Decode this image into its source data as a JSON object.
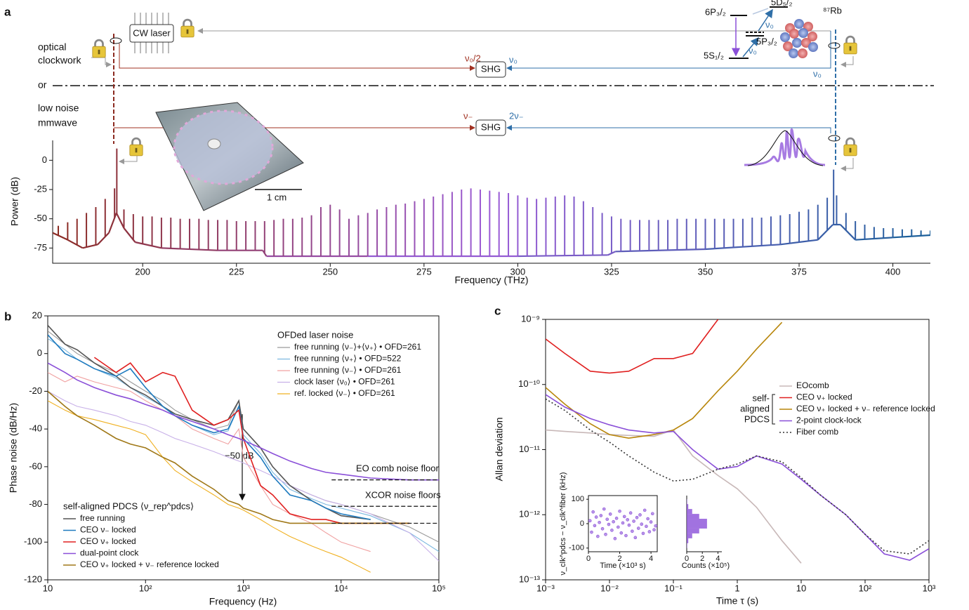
{
  "diagram": {
    "panel_labels": [
      "a",
      "b",
      "c"
    ],
    "cw_laser": "CW laser",
    "optical_clockwork": [
      "optical",
      "clockwork"
    ],
    "or": "or",
    "low_noise_mmwave": [
      "low noise",
      "mmwave"
    ],
    "shg": [
      "SHG",
      "SHG"
    ],
    "upper_left_freq": "ν₀/2",
    "upper_right_freq": "ν₀",
    "right_freq": "ν₀",
    "lower_left_freq": "ν₋",
    "lower_right_freq": "2ν₋",
    "levels": [
      "6P₃/₂",
      "5D₅/₂",
      "5P₃/₂",
      "5S₁/₂"
    ],
    "transitions": [
      "ν₀",
      "ν₀"
    ],
    "atom": "⁸⁷Rb",
    "scale_bar": "1 cm"
  },
  "chart_data": [
    {
      "type": "spectrum",
      "xlabel": "Frequency (THz)",
      "ylabel": "Power (dB)",
      "xlim": [
        176,
        410
      ],
      "ylim": [
        -88,
        17
      ],
      "xticks": [
        200,
        225,
        250,
        275,
        300,
        325,
        350,
        375,
        400
      ],
      "yticks": [
        0,
        -25,
        -50,
        -75
      ],
      "colors": [
        "#8b2a20",
        "#9b5bd6",
        "#1c5f9a"
      ],
      "x": [
        177.5,
        180,
        182.5,
        185,
        187.5,
        190,
        192.5,
        195,
        197.5,
        200,
        202.5,
        205,
        207.5,
        210,
        212.5,
        215,
        217.5,
        220,
        222.5,
        225,
        227.5,
        230,
        232.5,
        235,
        237.5,
        240,
        242.5,
        245,
        247.5,
        250,
        252.5,
        255,
        257.5,
        260,
        262.5,
        265,
        267.5,
        270,
        272.5,
        275,
        277.5,
        280,
        282.5,
        285,
        287.5,
        290,
        292.5,
        295,
        297.5,
        300,
        302.5,
        305,
        307.5,
        310,
        312.5,
        315,
        317.5,
        320,
        322.5,
        325,
        327.5,
        330,
        332.5,
        335,
        337.5,
        340,
        342.5,
        345,
        347.5,
        350,
        352.5,
        355,
        357.5,
        360,
        362.5,
        365,
        367.5,
        370,
        372.5,
        375,
        377.5,
        380,
        382.5,
        385,
        387.5,
        390,
        392.5,
        395,
        397.5,
        400,
        402.5,
        405,
        407.5,
        410
      ],
      "values": [
        -56,
        -53,
        -50,
        -45,
        -40,
        -33,
        -24,
        -42,
        -46,
        -48,
        -48,
        -49,
        -49,
        -50,
        -50,
        -50,
        -51,
        -51,
        -51,
        -52,
        -52,
        -52,
        -52,
        -51,
        -50,
        -50,
        -49,
        -47,
        -40,
        -38,
        -42,
        -50,
        -47,
        -45,
        -42,
        -40,
        -38,
        -37,
        -35,
        -33,
        -31,
        -29,
        -27,
        -25,
        -24,
        -25,
        -26,
        -27,
        -28,
        -30,
        -32,
        -33,
        -32,
        -31,
        -30,
        -31,
        -35,
        -40,
        -45,
        -48,
        -50,
        -51,
        -51,
        -51,
        -51,
        -51,
        -50,
        -50,
        -50,
        -50,
        -50,
        -50,
        -50,
        -50,
        -49,
        -49,
        -48,
        -47,
        -46,
        -44,
        -42,
        -38,
        -32,
        -30,
        -45,
        -52,
        -55,
        -57,
        -58,
        -58,
        -59,
        -59,
        -60,
        -60
      ],
      "floor": {
        "x": [
          176,
          180,
          184,
          188,
          191,
          193,
          195,
          198,
          205,
          220,
          232,
          233,
          260,
          300,
          324,
          326,
          350,
          370,
          380,
          384,
          386,
          390,
          400,
          410
        ],
        "values": [
          -62,
          -68,
          -75,
          -72,
          -62,
          -45,
          -58,
          -70,
          -75,
          -77,
          -77,
          -82,
          -82,
          -82,
          -81,
          -78,
          -76,
          -72,
          -68,
          -55,
          -55,
          -68,
          -66,
          -64
        ]
      },
      "spikes": {
        "x": [
          193.1,
          384.2
        ],
        "values": [
          10,
          -8
        ]
      }
    },
    {
      "type": "line",
      "xlabel": "Frequency (Hz)",
      "ylabel": "Phase noise (dB/Hz)",
      "xlog": true,
      "xlim": [
        10,
        100000
      ],
      "ylim": [
        -120,
        20
      ],
      "xticks": [
        10,
        {
          "value": 100,
          "label": "10²"
        },
        {
          "value": 1000,
          "label": "10³"
        },
        {
          "value": 10000,
          "label": "10⁴"
        },
        {
          "value": 100000,
          "label": "10⁵"
        }
      ],
      "yticks": [
        -120,
        -100,
        -80,
        -60,
        -40,
        -20,
        0,
        20
      ],
      "x": [
        10,
        15,
        20,
        30,
        50,
        70,
        100,
        150,
        200,
        300,
        500,
        700,
        900,
        1000,
        1500,
        2000,
        3000,
        5000,
        7000,
        10000,
        20000,
        50000,
        100000
      ],
      "legend_title": "self-aligned PDCS ⟨ν_rep^pdcs⟩",
      "series": [
        {
          "name": "free running",
          "color": "#555555",
          "values": [
            15,
            5,
            2,
            -5,
            -12,
            -18,
            -22,
            -28,
            -32,
            -35,
            -38,
            -35,
            -25,
            -40,
            -50,
            -60,
            -70,
            -78,
            -82,
            -86,
            -88,
            null,
            null
          ]
        },
        {
          "name": "CEO ν₋ locked",
          "color": "#1f7bbf",
          "values": [
            10,
            0,
            -3,
            -8,
            -12,
            -8,
            -18,
            -28,
            -33,
            -38,
            -42,
            -40,
            -28,
            -45,
            -55,
            -65,
            -75,
            -78,
            -82,
            -85,
            -88,
            null,
            null
          ]
        },
        {
          "name": "CEO ν₊ locked",
          "color": "#e02020",
          "values": [
            null,
            null,
            null,
            -2,
            -10,
            -5,
            -15,
            -10,
            -12,
            -30,
            -38,
            -35,
            -30,
            -45,
            -70,
            -75,
            -85,
            -88,
            -88,
            -90,
            -90,
            -90,
            null
          ]
        },
        {
          "name": "dual-point clock",
          "color": "#8a4fd8",
          "values": [
            -5,
            -10,
            -14,
            -18,
            -22,
            -24,
            -27,
            -30,
            -33,
            -36,
            -40,
            -43,
            -45,
            -46,
            -50,
            -53,
            -57,
            -61,
            -63,
            -64,
            -66,
            -67,
            -67
          ]
        },
        {
          "name": "CEO ν₊ locked + ν₋ reference locked",
          "color": "#a07818",
          "values": [
            -20,
            -28,
            -33,
            -38,
            -45,
            -48,
            -50,
            -55,
            -58,
            -65,
            -72,
            -78,
            -80,
            -82,
            -85,
            -88,
            -90,
            -90,
            -90,
            -90,
            -90,
            -90,
            null
          ]
        }
      ],
      "ofd_legend_title": "OFDed laser noise",
      "ofd_series": [
        {
          "name": "free running ⟨ν₋⟩+⟨ν₊⟩ • OFD=261",
          "color": "#9a9a9a",
          "values": [
            12,
            5,
            0,
            -5,
            -10,
            -15,
            -20,
            -25,
            -30,
            -35,
            -40,
            -38,
            -25,
            -40,
            -50,
            -60,
            -70,
            -75,
            -78,
            -80,
            -85,
            -92,
            -100
          ]
        },
        {
          "name": "free running ⟨ν₊⟩ • OFD=522",
          "color": "#7bb8e0",
          "values": [
            8,
            2,
            -3,
            -8,
            -13,
            -18,
            -23,
            -28,
            -33,
            -38,
            -43,
            -41,
            -28,
            -43,
            -53,
            -63,
            -72,
            -77,
            -80,
            -82,
            -86,
            -95,
            -105
          ]
        },
        {
          "name": "free running ⟨ν₋⟩ • OFD=261",
          "color": "#f0a0a0",
          "values": [
            -10,
            -15,
            -12,
            -15,
            -18,
            -20,
            -25,
            -30,
            -33,
            -40,
            -45,
            -48,
            -40,
            -55,
            -70,
            -80,
            -85,
            -90,
            -95,
            -100,
            -105,
            null,
            null
          ]
        },
        {
          "name": "clock laser ⟨ν₀⟩ • OFD=261",
          "color": "#c8b0e8",
          "values": [
            -20,
            -25,
            -28,
            -30,
            -33,
            -36,
            -38,
            -42,
            -45,
            -48,
            -52,
            -55,
            -57,
            -58,
            -62,
            -65,
            -70,
            -75,
            -78,
            -80,
            -85,
            -95,
            -110
          ]
        },
        {
          "name": "ref. locked ⟨ν₋⟩ • OFD=261",
          "color": "#f0b020",
          "values": [
            -25,
            -30,
            -33,
            -35,
            -38,
            -40,
            -43,
            -55,
            -62,
            -68,
            -75,
            -80,
            -82,
            -83,
            -88,
            -92,
            -97,
            -102,
            -105,
            -108,
            -116,
            null,
            null
          ]
        }
      ],
      "floors": [
        -67,
        -81,
        -90
      ],
      "floors_x": [
        8000,
        100000
      ],
      "annotations": [
        "−50 dB",
        "EO comb noise floor",
        "XCOR noise floors"
      ]
    },
    {
      "type": "line",
      "xlabel": "Time τ (s)",
      "ylabel": "Allan deviation",
      "xlog": true,
      "ylog": true,
      "xlim": [
        0.001,
        1000
      ],
      "ylim": [
        1e-13,
        1e-09
      ],
      "xticks": [
        {
          "value": 0.001,
          "label": "10⁻³"
        },
        {
          "value": 0.01,
          "label": "10⁻²"
        },
        {
          "value": 0.1,
          "label": "10⁻¹"
        },
        1,
        10,
        {
          "value": 100,
          "label": "10²"
        },
        {
          "value": 1000,
          "label": "10³"
        }
      ],
      "yticks": [
        {
          "value": 1e-13,
          "label": "10⁻¹³"
        },
        {
          "value": 1e-12,
          "label": "10⁻¹²"
        },
        {
          "value": 1e-11,
          "label": "10⁻¹¹"
        },
        {
          "value": 1e-10,
          "label": "10⁻¹⁰"
        },
        {
          "value": 1e-09,
          "label": "10⁻⁹"
        }
      ],
      "x": [
        0.001,
        0.002,
        0.005,
        0.01,
        0.02,
        0.05,
        0.1,
        0.2,
        0.5,
        1,
        2,
        5,
        10,
        20,
        50,
        100,
        200,
        500,
        1000
      ],
      "bracket_label": [
        "self-",
        "aligned",
        "PDCS"
      ],
      "series": [
        {
          "name": "EOcomb",
          "color": "#c8b8b8",
          "values": [
            2e-11,
            1.9e-11,
            1.8e-11,
            1.7e-11,
            1.65e-11,
            1.6e-11,
            2e-11,
            8e-12,
            4e-12,
            2.5e-12,
            1.3e-12,
            4e-13,
            1.8e-13,
            null,
            null,
            null,
            null,
            null,
            null
          ]
        },
        {
          "name": "CEO ν₊ locked",
          "color": "#e02020",
          "values": [
            5e-10,
            3e-10,
            1.6e-10,
            1.5e-10,
            1.6e-10,
            2.5e-10,
            2.5e-10,
            3e-10,
            1e-09,
            null,
            null,
            null,
            null,
            null,
            null,
            null,
            null,
            null,
            null
          ]
        },
        {
          "name": "CEO ν₊ locked + ν₋ reference locked",
          "color": "#b8860b",
          "values": [
            9e-11,
            5e-11,
            2.5e-11,
            1.7e-11,
            1.5e-11,
            1.7e-11,
            2e-11,
            3e-11,
            8e-11,
            1.6e-10,
            3.5e-10,
            9e-10,
            null,
            null,
            null,
            null,
            null,
            null,
            null
          ]
        },
        {
          "name": "2-point clock-lock",
          "color": "#8a4fd8",
          "values": [
            7e-11,
            4.5e-11,
            3e-11,
            2.4e-11,
            2e-11,
            1.8e-11,
            1.9e-11,
            1e-11,
            5e-12,
            5.5e-12,
            8e-12,
            6e-12,
            3.5e-12,
            2e-12,
            1e-12,
            5e-13,
            2.5e-13,
            2e-13,
            3e-13
          ]
        },
        {
          "name": "Fiber comb",
          "color": "#333333",
          "style": "dotted",
          "values": [
            6e-11,
            4e-11,
            2e-11,
            1.3e-11,
            8e-12,
            4.5e-12,
            3.3e-12,
            3.5e-12,
            5e-12,
            6e-12,
            8e-12,
            6.5e-12,
            3.7e-12,
            2e-12,
            1e-12,
            5e-13,
            2.8e-13,
            2.5e-13,
            4e-13
          ]
        }
      ]
    },
    {
      "type": "scatter",
      "xlabel": "Time (×10³ s)",
      "ylabel": "ν_clk^pdcs − ν_clk^fiber (kHz)",
      "xlim": [
        0,
        4.4
      ],
      "ylim": [
        -115,
        115
      ],
      "xticks": [
        0,
        2,
        4
      ],
      "yticks": [
        -100,
        0,
        100
      ],
      "color": "#8a4fd8",
      "x": [
        0.1,
        0.2,
        0.3,
        0.4,
        0.5,
        0.6,
        0.7,
        0.8,
        0.9,
        1.0,
        1.1,
        1.2,
        1.3,
        1.4,
        1.5,
        1.6,
        1.7,
        1.8,
        1.9,
        2.0,
        2.1,
        2.2,
        2.3,
        2.4,
        2.5,
        2.6,
        2.7,
        2.8,
        2.9,
        3.0,
        3.1,
        3.2,
        3.3,
        3.4,
        3.5,
        3.6,
        3.7,
        3.8,
        3.9,
        4.0,
        4.1,
        4.2,
        4.3
      ],
      "values": [
        12,
        -35,
        48,
        -8,
        27,
        -52,
        5,
        33,
        -21,
        60,
        -44,
        18,
        -3,
        39,
        -27,
        8,
        -61,
        22,
        -14,
        51,
        -38,
        3,
        29,
        -49,
        16,
        -6,
        44,
        -31,
        10,
        -57,
        25,
        -19,
        36,
        -2,
        -40,
        55,
        -11,
        20,
        -33,
        7,
        41,
        -25,
        -9
      ]
    },
    {
      "type": "histogram",
      "xlabel": "Counts (×10⁵)",
      "xlim": [
        0,
        4.5
      ],
      "ylim": [
        -115,
        115
      ],
      "xticks": [
        0,
        2,
        4
      ],
      "color": "#8a4fd8",
      "bins": [
        -100,
        -80,
        -60,
        -40,
        -20,
        0,
        20,
        40,
        60,
        80,
        100
      ],
      "counts": [
        0.05,
        0.2,
        0.7,
        1.6,
        2.6,
        2.6,
        1.6,
        0.7,
        0.2,
        0.05
      ]
    }
  ]
}
